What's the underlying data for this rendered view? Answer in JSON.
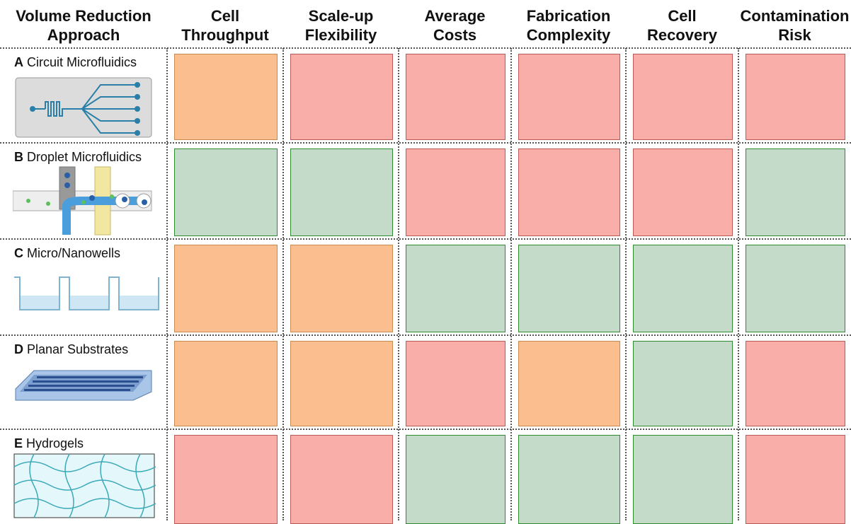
{
  "header": {
    "columns": [
      [
        "Volume Reduction",
        "Approach"
      ],
      [
        "Cell",
        "Throughput"
      ],
      [
        "Scale-up",
        "Flexibility"
      ],
      [
        "Average",
        "Costs"
      ],
      [
        "Fabrication",
        "Complexity"
      ],
      [
        "Cell",
        "Recovery"
      ],
      [
        "Contamination",
        "Risk"
      ]
    ]
  },
  "rows": [
    {
      "letter": "A",
      "name": "Circuit Microfluidics",
      "cells": [
        "#fbbf8f",
        "#f9aeaa",
        "#f9aeaa",
        "#f9aeaa",
        "#f9aeaa",
        "#f9aeaa"
      ]
    },
    {
      "letter": "B",
      "name": "Droplet Microfluidics",
      "cells": [
        "#c5dbc9",
        "#c5dbc9",
        "#f9aeaa",
        "#f9aeaa",
        "#f9aeaa",
        "#c5dbc9"
      ]
    },
    {
      "letter": "C",
      "name": "Micro/Nanowells",
      "cells": [
        "#fbbf8f",
        "#fbbf8f",
        "#c5dbc9",
        "#c5dbc9",
        "#c5dbc9",
        "#c5dbc9"
      ]
    },
    {
      "letter": "D",
      "name": "Planar Substrates",
      "cells": [
        "#fbbf8f",
        "#fbbf8f",
        "#f9aeaa",
        "#fbbf8f",
        "#c5dbc9",
        "#f9aeaa"
      ]
    },
    {
      "letter": "E",
      "name": "Hydrogels",
      "cells": [
        "#f9aeaa",
        "#f9aeaa",
        "#c5dbc9",
        "#c5dbc9",
        "#c5dbc9",
        "#f9aeaa"
      ]
    }
  ],
  "borders": {
    "#fbbf8f": "#c98a52",
    "#f9aeaa": "#b85a55",
    "#c5dbc9": "#2f8a2f"
  }
}
